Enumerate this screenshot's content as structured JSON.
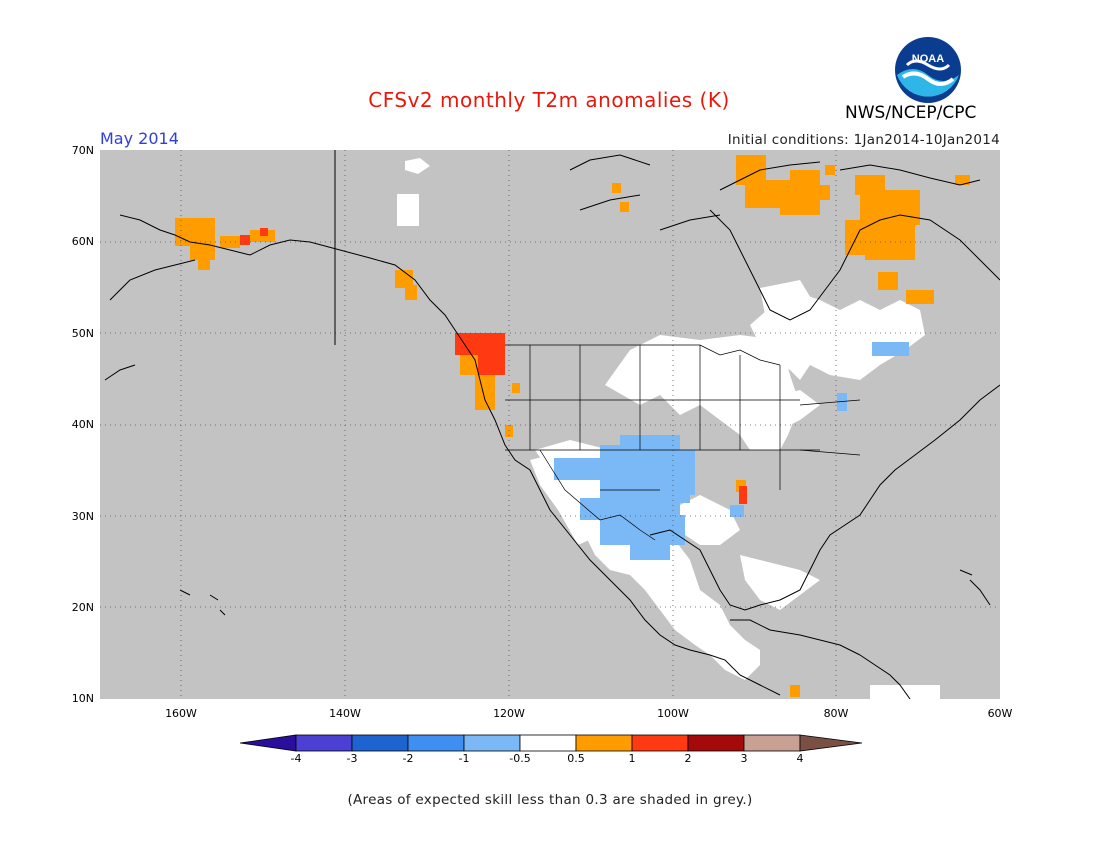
{
  "header": {
    "title": "CFSv2 monthly T2m anomalies (K)",
    "agency": "NWS/NCEP/CPC",
    "logo_text": "NOAA",
    "month": "May 2014",
    "initial_conditions": "Initial conditions: 1Jan2014-10Jan2014"
  },
  "axes": {
    "lat_labels": [
      "70N",
      "60N",
      "50N",
      "40N",
      "30N",
      "20N",
      "10N"
    ],
    "lon_labels": [
      "160W",
      "140W",
      "120W",
      "100W",
      "80W",
      "60W"
    ]
  },
  "colorbar": {
    "ticks": [
      "-4",
      "-3",
      "-2",
      "-1",
      "-0.5",
      "0.5",
      "1",
      "2",
      "3",
      "4"
    ],
    "colors": [
      "#2a0f9c",
      "#4b3fd4",
      "#1e64d0",
      "#3f8ff0",
      "#7ab8f6",
      "#ffffff",
      "#ff9d00",
      "#ff3a12",
      "#a40a0a",
      "#c8a094",
      "#7a5045"
    ]
  },
  "map_colors": {
    "ocean_grey": "#c3c3c3",
    "land_white": "#ffffff",
    "warm": "#ff9d00",
    "hot": "#ff3a12",
    "cool": "#7ab8f6",
    "coast": "#000000",
    "grid": "#555555"
  },
  "footnote": "(Areas of expected skill less than 0.3 are shaded in grey.)"
}
